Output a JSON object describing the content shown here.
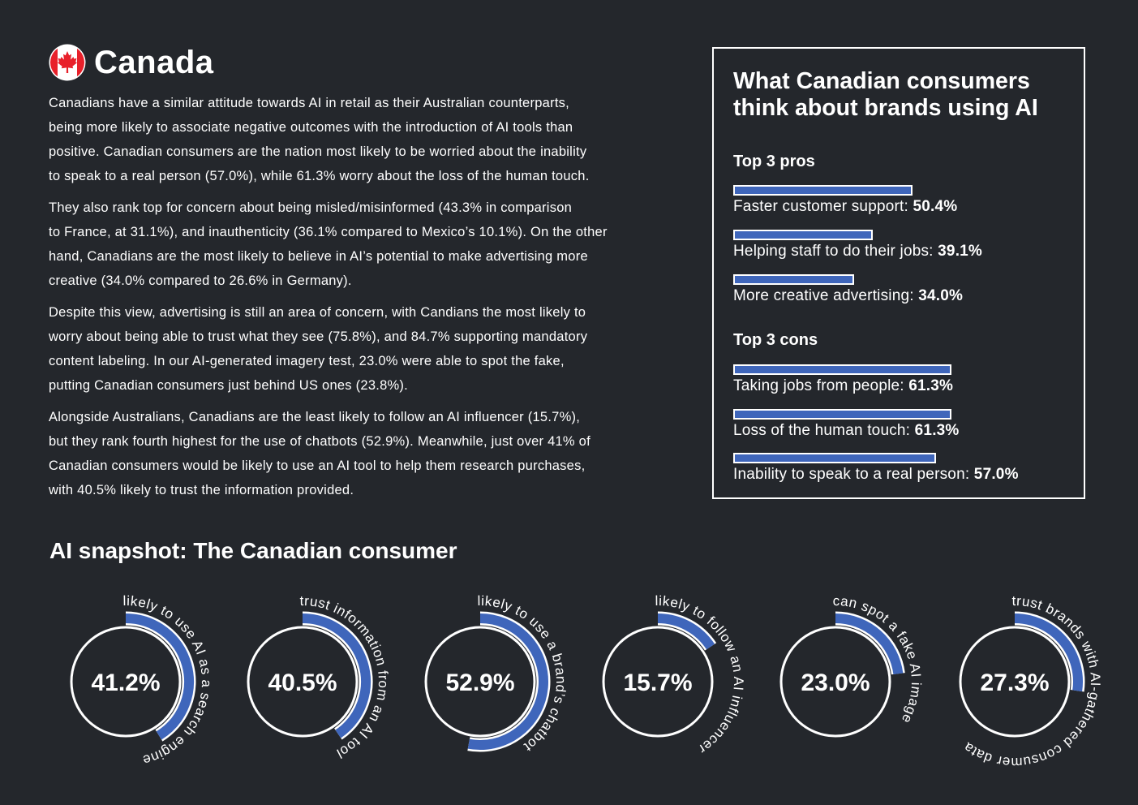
{
  "header": {
    "title": "Canada",
    "flag_icon": "canada-flag-icon"
  },
  "colors": {
    "background": "#24272c",
    "accent": "#3f66bb",
    "flag_red": "#e8202a"
  },
  "body": {
    "paragraphs": [
      [
        "Canadians have a similar attitude towards AI in retail as their Australian counterparts,",
        "being more likely to associate negative outcomes with the introduction of AI tools than",
        "positive. Canadian consumers are the nation most likely to be worried about the inability",
        "to speak to a real person (57.0%), while 61.3% worry about the loss of the human touch."
      ],
      [
        "They also rank top for concern about being misled/misinformed (43.3% in comparison",
        "to France, at 31.1%), and inauthenticity (36.1% compared to Mexico’s 10.1%). On the other",
        "hand, Canadians are the most likely to believe in AI’s potential to make advertising more",
        "creative (34.0% compared to 26.6% in Germany)."
      ],
      [
        "Despite this view, advertising is still an area of concern, with Candians the most likely to",
        "worry about being able to trust what they see (75.8%), and 84.7% supporting mandatory",
        "content labeling. In our AI-generated imagery test, 23.0% were able to spot the fake,",
        "putting Canadian consumers just behind US ones (23.8%)."
      ],
      [
        "Alongside Australians, Canadians are the least likely to follow an AI influencer (15.7%),",
        "but they rank fourth highest for the use of chatbots (52.9%). Meanwhile, just over 41% of",
        "Canadian consumers would be likely to use an AI tool to help them research purchases,",
        "with 40.5% likely to trust the information provided."
      ]
    ]
  },
  "panel": {
    "title": "What Canadian consumers think about brands using AI",
    "pros_heading": "Top 3 pros",
    "cons_heading": "Top 3 cons",
    "pros": [
      {
        "label": "Faster customer support:",
        "value": "50.4%",
        "pct": 50.4
      },
      {
        "label": "Helping staff to do their jobs:",
        "value": "39.1%",
        "pct": 39.1
      },
      {
        "label": "More creative advertising:",
        "value": "34.0%",
        "pct": 34.0
      }
    ],
    "cons": [
      {
        "label": "Taking jobs from people:",
        "value": "61.3%",
        "pct": 61.3
      },
      {
        "label": "Loss of the human touch:",
        "value": "61.3%",
        "pct": 61.3
      },
      {
        "label": "Inability to speak to a real person:",
        "value": "57.0%",
        "pct": 57.0
      }
    ]
  },
  "snapshot": {
    "title": "AI snapshot: The Canadian consumer",
    "items": [
      {
        "value": "41.2%",
        "pct": 41.2,
        "caption": "likely to use AI as a search engine"
      },
      {
        "value": "40.5%",
        "pct": 40.5,
        "caption": "trust information from an AI tool"
      },
      {
        "value": "52.9%",
        "pct": 52.9,
        "caption": "likely to use a brand’s chatbot"
      },
      {
        "value": "15.7%",
        "pct": 15.7,
        "caption": "likely to follow an AI influencer"
      },
      {
        "value": "23.0%",
        "pct": 23.0,
        "caption": "can spot a fake AI image"
      },
      {
        "value": "27.3%",
        "pct": 27.3,
        "caption": "trust brands with AI-gathered consumer data"
      }
    ]
  }
}
